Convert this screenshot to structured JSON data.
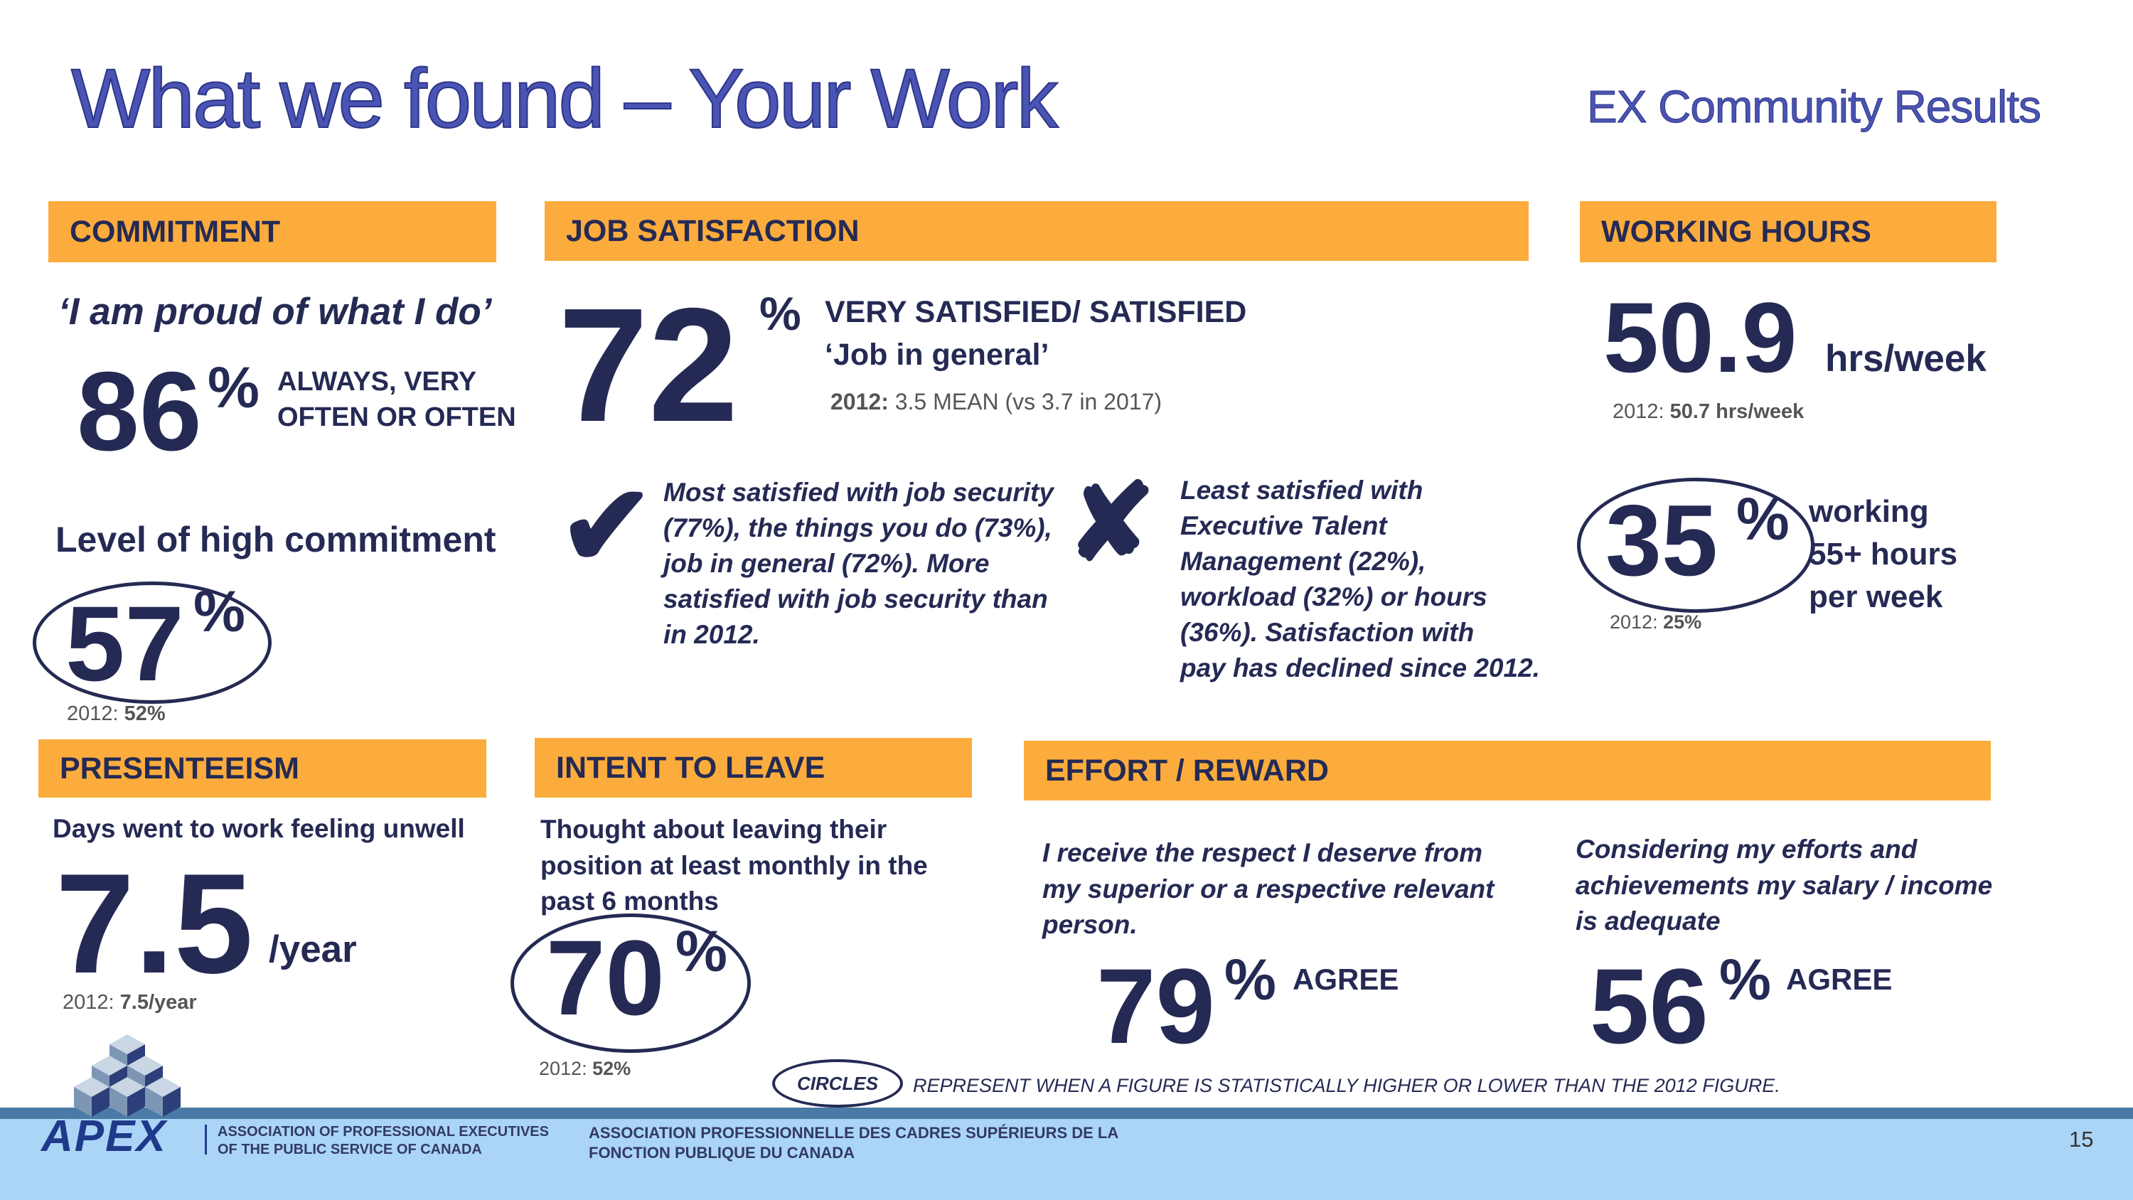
{
  "title": "What we found – Your Work",
  "subtitle": "EX Community Results",
  "commitment": {
    "header": "COMMITMENT",
    "quote": "‘I am proud of what I do’",
    "value": "86",
    "pct": "%",
    "desc_line1": "ALWAYS, VERY",
    "desc_line2": "OFTEN OR OFTEN",
    "level_label": "Level of high commitment",
    "level_value": "57",
    "level_pct": "%",
    "prior_label": "2012: ",
    "prior_value": "52%"
  },
  "job_satisfaction": {
    "header": "JOB SATISFACTION",
    "value": "72",
    "pct": "%",
    "desc_line1": "VERY SATISFIED/ SATISFIED",
    "desc_line2": "‘Job in general’",
    "prior_label": "2012:",
    "prior_value": " 3.5 MEAN (vs 3.7 in 2017)",
    "check_symbol": "✔",
    "most_lines": [
      "Most satisfied with job security",
      "(77%), the things you do (73%),",
      "job in general (72%). More",
      "satisfied with job security than",
      "in 2012."
    ],
    "cross_symbol": "✘",
    "least_lines": [
      "Least satisfied with",
      "Executive Talent",
      "Management (22%),",
      "workload (32%) or hours",
      "(36%).  Satisfaction with",
      "pay has declined since 2012."
    ]
  },
  "working_hours": {
    "header": "WORKING HOURS",
    "value": "50.9",
    "unit": "hrs/week",
    "prior_label": "2012: ",
    "prior_value": "50.7 hrs/week",
    "pct_value": "35",
    "pct": "%",
    "desc_line1": "working",
    "desc_line2": "55+ hours",
    "desc_line3": "per week",
    "prior2_label": "2012: ",
    "prior2_value": "25%"
  },
  "presenteeism": {
    "header": "PRESENTEEISM",
    "desc": "Days went to work feeling unwell",
    "value": "7.5",
    "unit": "/year",
    "prior_label": "2012: ",
    "prior_value": "7.5/year"
  },
  "intent_to_leave": {
    "header": "INTENT TO LEAVE",
    "desc_line1": "Thought about leaving their",
    "desc_line2": "position at least monthly in the",
    "desc_line3": "past 6 months",
    "value": "70",
    "pct": "%",
    "prior_label": "2012: ",
    "prior_value": "52%"
  },
  "effort_reward": {
    "header": "EFFORT / REWARD",
    "left_lines": [
      "I receive the respect I deserve from",
      "my superior or a respective relevant",
      "person."
    ],
    "left_value": "79",
    "left_pct": "%",
    "left_label": "AGREE",
    "right_lines": [
      "Considering my efforts and",
      "achievements my salary / income",
      "is adequate"
    ],
    "right_value": "56",
    "right_pct": "%",
    "right_label": "AGREE"
  },
  "legend": {
    "circles_label": "CIRCLES",
    "text": "REPRESENT WHEN A FIGURE IS STATISTICALLY HIGHER OR LOWER THAN THE 2012 FIGURE."
  },
  "footer": {
    "logo_text": "APEX",
    "org_en_line1": "ASSOCIATION OF PROFESSIONAL EXECUTIVES",
    "org_en_line2": "OF THE PUBLIC SERVICE OF CANADA",
    "org_fr_line1": "ASSOCIATION PROFESSIONNELLE DES CADRES SUPÉRIEURS DE LA",
    "org_fr_line2": "FONCTION PUBLIQUE DU CANADA",
    "page_number": "15"
  },
  "colors": {
    "accent_orange": "#fbac3c",
    "navy": "#252a54",
    "title_blue": "#4a54b4",
    "footer_blue": "#abd5f6",
    "footer_band": "#4a7ba6"
  }
}
